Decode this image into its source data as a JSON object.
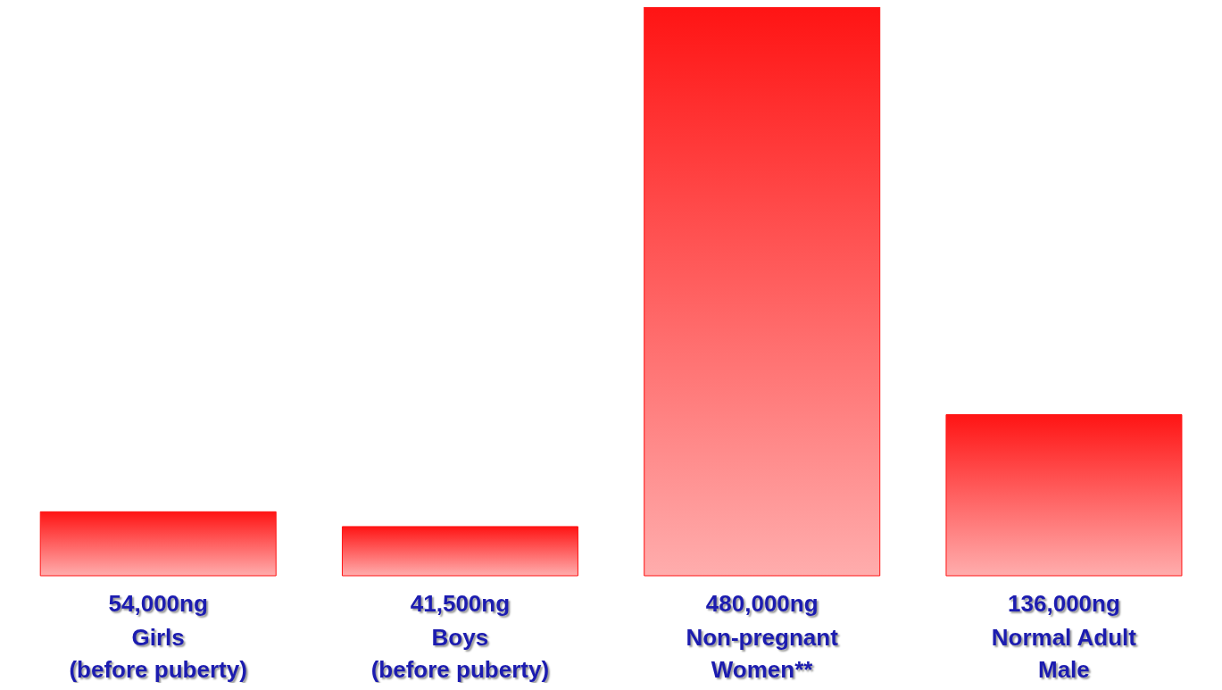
{
  "chart_data": {
    "type": "bar",
    "categories": [
      "Girls\n(before puberty)",
      "Boys\n(before puberty)",
      "Non-pregnant\nWomen**",
      "Normal Adult\nMale"
    ],
    "values": [
      54000,
      41500,
      480000,
      136000
    ],
    "value_labels": [
      "54,000ng",
      "41,500ng",
      "480,000ng",
      "136,000ng"
    ],
    "color": "#ff1414",
    "grid": false,
    "legend": false
  }
}
